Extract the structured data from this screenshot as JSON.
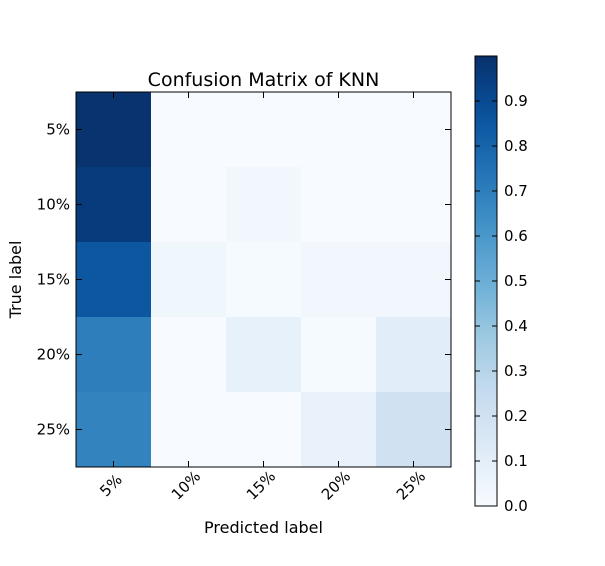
{
  "chart_data": {
    "type": "heatmap",
    "title": "Confusion Matrix of KNN",
    "xlabel": "Predicted label",
    "ylabel": "True label",
    "x_categories": [
      "5%",
      "10%",
      "15%",
      "20%",
      "25%"
    ],
    "y_categories": [
      "5%",
      "10%",
      "15%",
      "20%",
      "25%"
    ],
    "matrix": [
      [
        0.99,
        0.0,
        0.0,
        0.0,
        0.0
      ],
      [
        0.96,
        0.0,
        0.03,
        0.0,
        0.0
      ],
      [
        0.85,
        0.04,
        0.01,
        0.03,
        0.03
      ],
      [
        0.7,
        0.0,
        0.08,
        0.01,
        0.11
      ],
      [
        0.68,
        0.0,
        0.0,
        0.07,
        0.2
      ]
    ],
    "colorbar": {
      "min": 0.0,
      "max": 1.0,
      "ticks": [
        "0.0",
        "0.1",
        "0.2",
        "0.3",
        "0.4",
        "0.5",
        "0.6",
        "0.7",
        "0.8",
        "0.9"
      ]
    },
    "colormap": "Blues",
    "grid": false
  }
}
